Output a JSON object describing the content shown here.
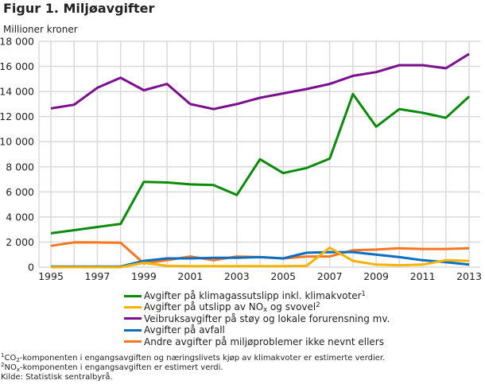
{
  "chart_data": {
    "type": "line",
    "title": "Figur 1. Miljøavgifter",
    "ylabel": "Millioner kroner",
    "xlabel": "",
    "ylim": [
      0,
      18000
    ],
    "xlim": [
      1995,
      2013
    ],
    "grid": true,
    "legend_position": "bottom",
    "yticks": [
      0,
      2000,
      4000,
      6000,
      8000,
      10000,
      12000,
      14000,
      16000,
      18000
    ],
    "ytick_labels": [
      "0",
      "2 000",
      "4 000",
      "6 000",
      "8 000",
      "10 000",
      "12 000",
      "14 000",
      "16 000",
      "18 000"
    ],
    "xticks": [
      1995,
      1997,
      1999,
      2001,
      2003,
      2005,
      2007,
      2009,
      2011,
      2013
    ],
    "xtick_labels": [
      "1995",
      "1997",
      "1999",
      "2001",
      "2003",
      "2005",
      "2007",
      "2009",
      "2011",
      "2013"
    ],
    "x": [
      1995,
      1996,
      1997,
      1998,
      1999,
      2000,
      2001,
      2002,
      2003,
      2004,
      2005,
      2006,
      2007,
      2008,
      2009,
      2010,
      2011,
      2012,
      2013
    ],
    "series": [
      {
        "name": "Avgifter på klimagassutslipp inkl. klimakvoter",
        "footnote": "1",
        "color": "#0a8c0a",
        "values": [
          2700,
          2950,
          3200,
          3450,
          6800,
          6750,
          6600,
          6550,
          5750,
          8600,
          7500,
          7900,
          8650,
          13800,
          11200,
          12600,
          12300,
          11900,
          13600
        ]
      },
      {
        "name": "Avgifter på utslipp av NOx og svovel",
        "footnote": "2",
        "color": "#f8b300",
        "values": [
          0,
          0,
          0,
          0,
          350,
          100,
          80,
          80,
          80,
          80,
          80,
          100,
          1550,
          500,
          200,
          150,
          200,
          550,
          500
        ]
      },
      {
        "name": "Veibruksavgifter på støy og lokale forurensning mv.",
        "footnote": "",
        "color": "#7b0f8f",
        "values": [
          12650,
          12950,
          14300,
          15100,
          14100,
          14600,
          13000,
          12600,
          13000,
          13500,
          13850,
          14200,
          14600,
          15250,
          15550,
          16100,
          16100,
          15850,
          17000
        ]
      },
      {
        "name": "Avgifter på avfall",
        "footnote": "",
        "color": "#0a6fc2",
        "values": [
          50,
          50,
          50,
          50,
          500,
          700,
          700,
          750,
          750,
          800,
          700,
          1150,
          1200,
          1200,
          1000,
          800,
          550,
          400,
          200
        ]
      },
      {
        "name": "Andre avgifter på miljøproblemer ikke nevnt ellers",
        "footnote": "",
        "color": "#f7761f",
        "values": [
          1700,
          1980,
          1970,
          1950,
          300,
          550,
          850,
          550,
          850,
          800,
          700,
          850,
          850,
          1350,
          1400,
          1500,
          1450,
          1450,
          1500
        ]
      }
    ]
  },
  "legend": {
    "items": [
      {
        "pre": "Avgifter på klimagassutslipp inkl. klimakvoter",
        "sup": "1"
      },
      {
        "pre": "Avgifter på utslipp av NO",
        "sub": "x",
        "post": " og svovel",
        "sup": "2"
      },
      {
        "pre": "Veibruksavgifter på støy og lokale forurensning mv."
      },
      {
        "pre": "Avgifter på avfall"
      },
      {
        "pre": "Andre avgifter på miljøproblemer ikke nevnt ellers"
      }
    ]
  },
  "notes": {
    "note1": {
      "num": "1",
      "pre": "CO",
      "sub": "2",
      "post": "-komponenten i engangsavgiften og næringslivets kjøp av klimakvoter er estimerte verdier."
    },
    "note2": {
      "num": "2",
      "pre": "NO",
      "sub": "x",
      "post": "-komponenten i engangsavgiften er estimert verdi."
    },
    "source": "Kilde: Statistisk sentralbyrå."
  }
}
